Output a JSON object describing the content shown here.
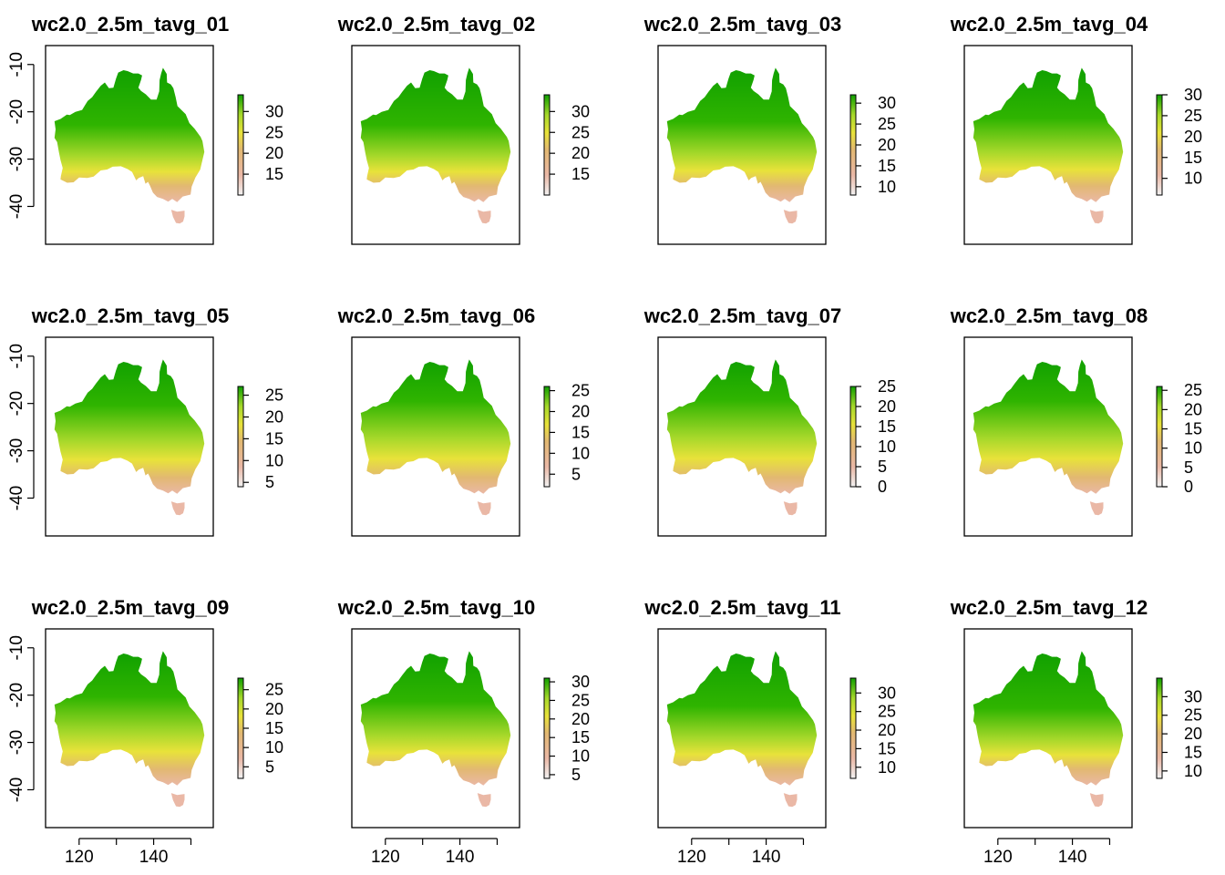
{
  "colors": {
    "low": "#f2f2f2",
    "pink": "#eab8a6",
    "tan": "#e2b872",
    "yellow": "#e8e23a",
    "lime": "#a6d82a",
    "green": "#2fb400",
    "dark_green": "#10a000"
  },
  "chart_data": [
    {
      "type": "heatmap",
      "title": "wc2.0_2.5m_tavg_01",
      "legend_ticks": [
        "15",
        "20",
        "25",
        "30"
      ],
      "legend_range": [
        10,
        34
      ],
      "xlim": [
        111,
        156
      ],
      "ylim": [
        -48,
        -6
      ],
      "x_ticks": [],
      "y_ticks": [
        "-10",
        "-20",
        "-30",
        "-40"
      ]
    },
    {
      "type": "heatmap",
      "title": "wc2.0_2.5m_tavg_02",
      "legend_ticks": [
        "15",
        "20",
        "25",
        "30"
      ],
      "legend_range": [
        10,
        34
      ],
      "xlim": [
        111,
        156
      ],
      "ylim": [
        -48,
        -6
      ],
      "x_ticks": [],
      "y_ticks": []
    },
    {
      "type": "heatmap",
      "title": "wc2.0_2.5m_tavg_03",
      "legend_ticks": [
        "10",
        "15",
        "20",
        "25",
        "30"
      ],
      "legend_range": [
        8,
        32
      ],
      "xlim": [
        111,
        156
      ],
      "ylim": [
        -48,
        -6
      ],
      "x_ticks": [],
      "y_ticks": []
    },
    {
      "type": "heatmap",
      "title": "wc2.0_2.5m_tavg_04",
      "legend_ticks": [
        "10",
        "15",
        "20",
        "25",
        "30"
      ],
      "legend_range": [
        6,
        30
      ],
      "xlim": [
        111,
        156
      ],
      "ylim": [
        -48,
        -6
      ],
      "x_ticks": [],
      "y_ticks": []
    },
    {
      "type": "heatmap",
      "title": "wc2.0_2.5m_tavg_05",
      "legend_ticks": [
        "5",
        "10",
        "15",
        "20",
        "25"
      ],
      "legend_range": [
        4,
        27
      ],
      "xlim": [
        111,
        156
      ],
      "ylim": [
        -48,
        -6
      ],
      "x_ticks": [],
      "y_ticks": [
        "-10",
        "-20",
        "-30",
        "-40"
      ]
    },
    {
      "type": "heatmap",
      "title": "wc2.0_2.5m_tavg_06",
      "legend_ticks": [
        "5",
        "10",
        "15",
        "20",
        "25"
      ],
      "legend_range": [
        2,
        26
      ],
      "xlim": [
        111,
        156
      ],
      "ylim": [
        -48,
        -6
      ],
      "x_ticks": [],
      "y_ticks": []
    },
    {
      "type": "heatmap",
      "title": "wc2.0_2.5m_tavg_07",
      "legend_ticks": [
        "0",
        "5",
        "10",
        "15",
        "20",
        "25"
      ],
      "legend_range": [
        0,
        25
      ],
      "xlim": [
        111,
        156
      ],
      "ylim": [
        -48,
        -6
      ],
      "x_ticks": [],
      "y_ticks": []
    },
    {
      "type": "heatmap",
      "title": "wc2.0_2.5m_tavg_08",
      "legend_ticks": [
        "0",
        "5",
        "10",
        "15",
        "20",
        "25"
      ],
      "legend_range": [
        0,
        26
      ],
      "xlim": [
        111,
        156
      ],
      "ylim": [
        -48,
        -6
      ],
      "x_ticks": [],
      "y_ticks": []
    },
    {
      "type": "heatmap",
      "title": "wc2.0_2.5m_tavg_09",
      "legend_ticks": [
        "5",
        "10",
        "15",
        "20",
        "25"
      ],
      "legend_range": [
        2,
        28
      ],
      "xlim": [
        111,
        156
      ],
      "ylim": [
        -48,
        -6
      ],
      "x_ticks": [
        "120",
        "140"
      ],
      "y_ticks": [
        "-10",
        "-20",
        "-30",
        "-40"
      ]
    },
    {
      "type": "heatmap",
      "title": "wc2.0_2.5m_tavg_10",
      "legend_ticks": [
        "5",
        "10",
        "15",
        "20",
        "25",
        "30"
      ],
      "legend_range": [
        4,
        31
      ],
      "xlim": [
        111,
        156
      ],
      "ylim": [
        -48,
        -6
      ],
      "x_ticks": [
        "120",
        "140"
      ],
      "y_ticks": []
    },
    {
      "type": "heatmap",
      "title": "wc2.0_2.5m_tavg_11",
      "legend_ticks": [
        "10",
        "15",
        "20",
        "25",
        "30"
      ],
      "legend_range": [
        7,
        34
      ],
      "xlim": [
        111,
        156
      ],
      "ylim": [
        -48,
        -6
      ],
      "x_ticks": [
        "120",
        "140"
      ],
      "y_ticks": []
    },
    {
      "type": "heatmap",
      "title": "wc2.0_2.5m_tavg_12",
      "legend_ticks": [
        "10",
        "15",
        "20",
        "25",
        "30"
      ],
      "legend_range": [
        8,
        35
      ],
      "xlim": [
        111,
        156
      ],
      "ylim": [
        -48,
        -6
      ],
      "x_ticks": [
        "120",
        "140"
      ],
      "y_ticks": []
    }
  ]
}
